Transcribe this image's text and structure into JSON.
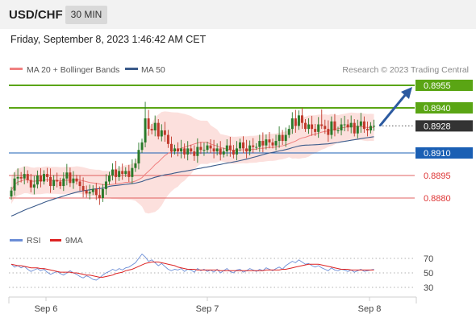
{
  "header": {
    "symbol": "USD/CHF",
    "timeframe": "30 MIN",
    "datetime": "Friday, September 8, 2023 1:46:42 AM CET"
  },
  "legend": {
    "ma20_bb": "MA 20 + Bollinger Bands",
    "ma50": "MA 50",
    "credit": "Research © 2023 Trading Central"
  },
  "rsi_legend": {
    "rsi": "RSI",
    "ma9": "9MA"
  },
  "colors": {
    "resistance": "#5aa514",
    "pivot": "#1a5fb4",
    "support": "#e06060",
    "current": "#333333",
    "bull_candle": "#2a7a2a",
    "bear_candle": "#c0392b",
    "bands": "#fbd6d2",
    "ma20": "#f08080",
    "ma50": "#3a5a8a",
    "arrow": "#2c5aa0",
    "rsi": "#6b8dd6",
    "rsi_ma": "#dd2222"
  },
  "chart_data": [
    {
      "type": "candlestick",
      "symbol": "USD/CHF",
      "timeframe": "30 MIN",
      "levels": [
        {
          "name": "resistance-2",
          "value": 0.8955,
          "label": "0.8955",
          "kind": "resistance"
        },
        {
          "name": "resistance-1",
          "value": 0.894,
          "label": "0.8940",
          "kind": "resistance"
        },
        {
          "name": "current",
          "value": 0.8928,
          "label": "0.8928",
          "kind": "current"
        },
        {
          "name": "pivot",
          "value": 0.891,
          "label": "0.8910",
          "kind": "pivot"
        },
        {
          "name": "support-1",
          "value": 0.8895,
          "label": "0.8895",
          "kind": "support"
        },
        {
          "name": "support-2",
          "value": 0.888,
          "label": "0.8880",
          "kind": "support"
        }
      ],
      "x_ticks": [
        "Sep 6",
        "Sep 7",
        "Sep 8"
      ],
      "close_series": [
        0.8885,
        0.8893,
        0.8894,
        0.8893,
        0.8896,
        0.8892,
        0.8887,
        0.8889,
        0.8895,
        0.8891,
        0.8896,
        0.8894,
        0.8888,
        0.8892,
        0.8891,
        0.8888,
        0.8893,
        0.8897,
        0.889,
        0.8893,
        0.8891,
        0.8888,
        0.8885,
        0.8883,
        0.8884,
        0.8886,
        0.8882,
        0.888,
        0.8886,
        0.8891,
        0.8895,
        0.8899,
        0.8894,
        0.8898,
        0.8896,
        0.8898,
        0.8894,
        0.89,
        0.8903,
        0.8912,
        0.8917,
        0.8933,
        0.8926,
        0.8925,
        0.893,
        0.8921,
        0.8925,
        0.8922,
        0.8916,
        0.8911,
        0.8913,
        0.8911,
        0.8913,
        0.8909,
        0.8913,
        0.8911,
        0.8908,
        0.8914,
        0.8912,
        0.8912,
        0.8915,
        0.8913,
        0.8911,
        0.8913,
        0.8909,
        0.8911,
        0.8915,
        0.8912,
        0.8909,
        0.8913,
        0.8917,
        0.8913,
        0.8911,
        0.8915,
        0.8914,
        0.8914,
        0.8918,
        0.8915,
        0.8919,
        0.8917,
        0.8915,
        0.8918,
        0.8922,
        0.8918,
        0.8922,
        0.8926,
        0.8933,
        0.8928,
        0.8935,
        0.893,
        0.8926,
        0.8929,
        0.8926,
        0.8924,
        0.8929,
        0.8928,
        0.8926,
        0.8922,
        0.8931,
        0.8925,
        0.8925,
        0.8929,
        0.8929,
        0.8927,
        0.893,
        0.8923,
        0.8928,
        0.8931,
        0.8926,
        0.8925,
        0.8928,
        0.8928
      ],
      "forecast": {
        "from": 0.8928,
        "to": 0.8955
      }
    },
    {
      "type": "line",
      "indicator": "RSI",
      "y_ticks": [
        70,
        50,
        30
      ],
      "ylim": [
        20,
        80
      ],
      "series": [
        {
          "name": "RSI",
          "values": [
            62,
            58,
            60,
            57,
            59,
            55,
            52,
            54,
            56,
            53,
            55,
            51,
            48,
            50,
            52,
            49,
            47,
            50,
            53,
            50,
            48,
            45,
            43,
            46,
            44,
            41,
            40,
            43,
            47,
            50,
            52,
            55,
            53,
            56,
            54,
            57,
            58,
            61,
            64,
            70,
            76,
            72,
            66,
            68,
            64,
            60,
            63,
            59,
            55,
            53,
            55,
            54,
            56,
            52,
            55,
            54,
            51,
            56,
            53,
            55,
            52,
            54,
            51,
            55,
            50,
            53,
            56,
            52,
            50,
            54,
            55,
            51,
            53,
            56,
            54,
            52,
            55,
            53,
            57,
            55,
            53,
            56,
            58,
            55,
            60,
            63,
            66,
            64,
            68,
            65,
            62,
            63,
            60,
            58,
            60,
            57,
            55,
            53,
            57,
            54,
            53,
            55,
            54,
            52,
            54,
            51,
            53,
            55,
            52,
            53,
            54,
            55
          ]
        },
        {
          "name": "9MA",
          "values": [
            62,
            61,
            60,
            60,
            59,
            58,
            57,
            57,
            57,
            56,
            56,
            55,
            54,
            53,
            52,
            51,
            51,
            51,
            51,
            50,
            50,
            49,
            48,
            47,
            47,
            46,
            45,
            44,
            44,
            45,
            46,
            47,
            49,
            50,
            51,
            53,
            54,
            55,
            57,
            59,
            61,
            63,
            64,
            65,
            65,
            65,
            64,
            63,
            62,
            61,
            60,
            58,
            57,
            56,
            55,
            55,
            55,
            54,
            54,
            54,
            54,
            54,
            54,
            54,
            53,
            53,
            53,
            53,
            53,
            53,
            53,
            53,
            53,
            53,
            53,
            53,
            53,
            53,
            54,
            54,
            54,
            54,
            54,
            55,
            55,
            56,
            57,
            58,
            59,
            60,
            61,
            62,
            62,
            62,
            62,
            61,
            60,
            59,
            58,
            57,
            56,
            55,
            55,
            55,
            54,
            54,
            54,
            54,
            54,
            54,
            54,
            54
          ]
        }
      ]
    }
  ]
}
